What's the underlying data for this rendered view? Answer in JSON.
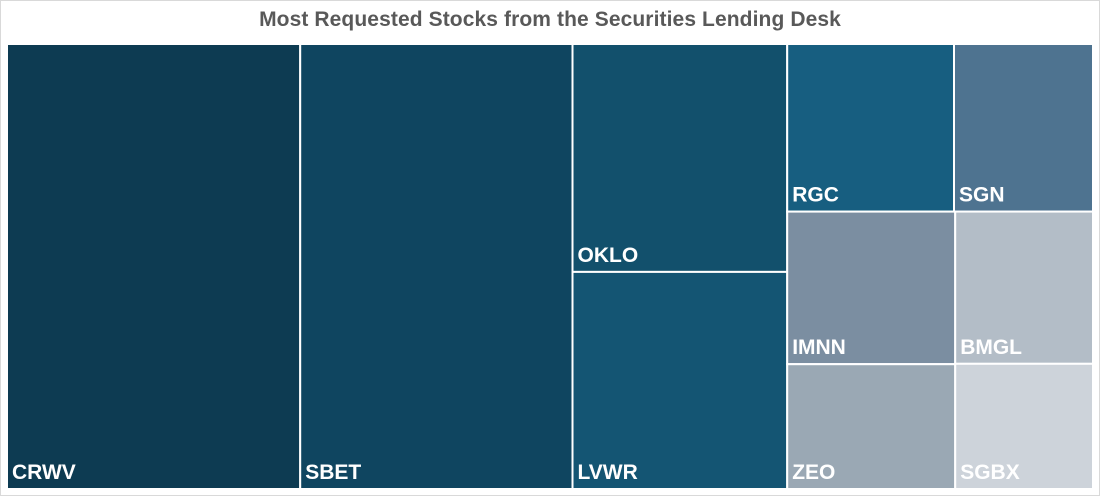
{
  "chart_data": {
    "type": "treemap",
    "title": "Most Requested Stocks from the Securities Lending Desk",
    "items": [
      {
        "label": "CRWV",
        "value": 2.8,
        "color": "#0d3b52"
      },
      {
        "label": "SBET",
        "value": 2.6,
        "color": "#0f4560"
      },
      {
        "label": "OKLO",
        "value": 1.05,
        "color": "#12506c"
      },
      {
        "label": "LVWR",
        "value": 1.0,
        "color": "#145573"
      },
      {
        "label": "RGC",
        "value": 0.6,
        "color": "#175e80"
      },
      {
        "label": "SGN",
        "value": 0.5,
        "color": "#4e7390"
      },
      {
        "label": "IMNN",
        "value": 0.55,
        "color": "#7b8ea1"
      },
      {
        "label": "BMGL",
        "value": 0.45,
        "color": "#b3bdc7"
      },
      {
        "label": "ZEO",
        "value": 0.45,
        "color": "#9aa8b4"
      },
      {
        "label": "SGBX",
        "value": 0.37,
        "color": "#cdd3da"
      }
    ]
  }
}
